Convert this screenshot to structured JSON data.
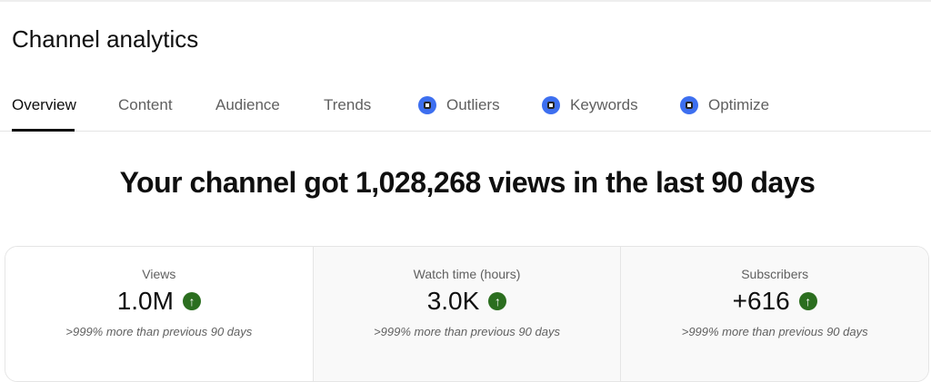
{
  "page_title": "Channel analytics",
  "tabs": [
    {
      "label": "Overview",
      "active": true
    },
    {
      "label": "Content"
    },
    {
      "label": "Audience"
    },
    {
      "label": "Trends"
    },
    {
      "label": "Outliers",
      "icon": "vidiq-icon"
    },
    {
      "label": "Keywords",
      "icon": "vidiq-icon"
    },
    {
      "label": "Optimize",
      "icon": "vidiq-icon"
    }
  ],
  "headline": "Your channel got 1,028,268 views in the last 90 days",
  "metrics": [
    {
      "label": "Views",
      "value": "1.0M",
      "trend": "up",
      "comparison": ">999% more than previous 90 days"
    },
    {
      "label": "Watch time (hours)",
      "value": "3.0K",
      "trend": "up",
      "comparison": ">999% more than previous 90 days"
    },
    {
      "label": "Subscribers",
      "value": "+616",
      "trend": "up",
      "comparison": ">999% more than previous 90 days"
    }
  ],
  "colors": {
    "trend_up": "#2b6e1f",
    "vidiq_icon": "#3d6ff0"
  }
}
